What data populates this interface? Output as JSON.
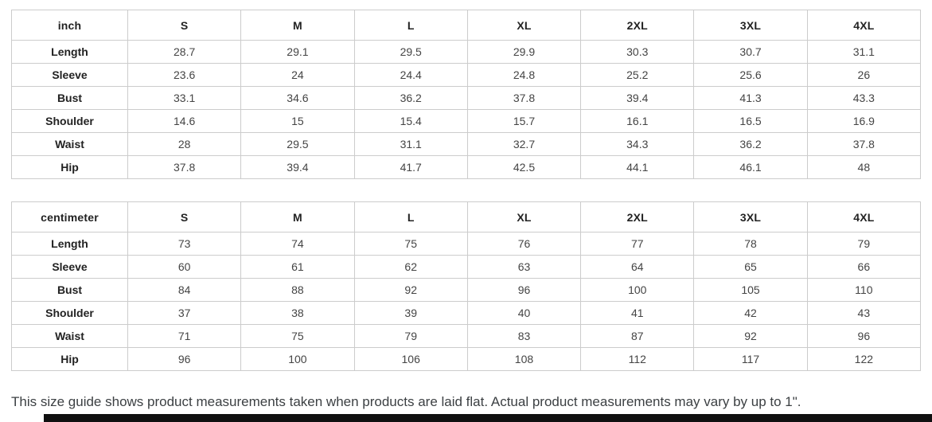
{
  "tables": [
    {
      "unit_label": "inch",
      "sizes": [
        "S",
        "M",
        "L",
        "XL",
        "2XL",
        "3XL",
        "4XL"
      ],
      "rows": [
        {
          "label": "Length",
          "values": [
            "28.7",
            "29.1",
            "29.5",
            "29.9",
            "30.3",
            "30.7",
            "31.1"
          ]
        },
        {
          "label": "Sleeve",
          "values": [
            "23.6",
            "24",
            "24.4",
            "24.8",
            "25.2",
            "25.6",
            "26"
          ]
        },
        {
          "label": "Bust",
          "values": [
            "33.1",
            "34.6",
            "36.2",
            "37.8",
            "39.4",
            "41.3",
            "43.3"
          ]
        },
        {
          "label": "Shoulder",
          "values": [
            "14.6",
            "15",
            "15.4",
            "15.7",
            "16.1",
            "16.5",
            "16.9"
          ]
        },
        {
          "label": "Waist",
          "values": [
            "28",
            "29.5",
            "31.1",
            "32.7",
            "34.3",
            "36.2",
            "37.8"
          ]
        },
        {
          "label": "Hip",
          "values": [
            "37.8",
            "39.4",
            "41.7",
            "42.5",
            "44.1",
            "46.1",
            "48"
          ]
        }
      ]
    },
    {
      "unit_label": "centimeter",
      "sizes": [
        "S",
        "M",
        "L",
        "XL",
        "2XL",
        "3XL",
        "4XL"
      ],
      "rows": [
        {
          "label": "Length",
          "values": [
            "73",
            "74",
            "75",
            "76",
            "77",
            "78",
            "79"
          ]
        },
        {
          "label": "Sleeve",
          "values": [
            "60",
            "61",
            "62",
            "63",
            "64",
            "65",
            "66"
          ]
        },
        {
          "label": "Bust",
          "values": [
            "84",
            "88",
            "92",
            "96",
            "100",
            "105",
            "110"
          ]
        },
        {
          "label": "Shoulder",
          "values": [
            "37",
            "38",
            "39",
            "40",
            "41",
            "42",
            "43"
          ]
        },
        {
          "label": "Waist",
          "values": [
            "71",
            "75",
            "79",
            "83",
            "87",
            "92",
            "96"
          ]
        },
        {
          "label": "Hip",
          "values": [
            "96",
            "100",
            "106",
            "108",
            "112",
            "117",
            "122"
          ]
        }
      ]
    }
  ],
  "footnote": "This size guide shows product measurements taken when products are laid flat. Actual product measurements may vary by up to 1\".",
  "colors": {
    "table_border": "#cccccc",
    "header_text": "#222222",
    "value_text": "#444444",
    "footnote_text": "#3c4043",
    "bottom_bar": "#101010"
  }
}
